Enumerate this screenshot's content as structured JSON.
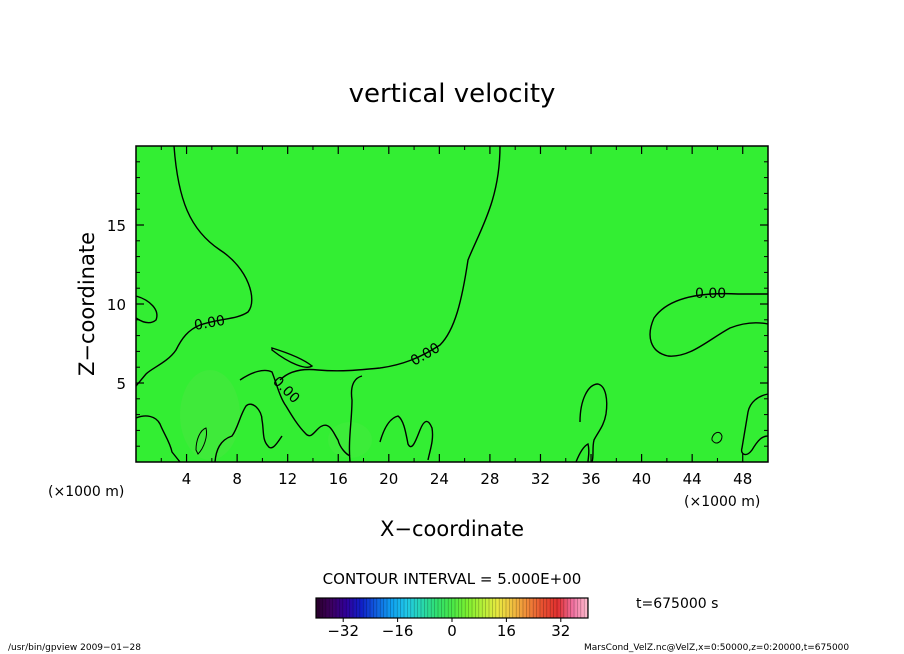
{
  "chart_data": {
    "type": "heatmap",
    "title": "vertical velocity",
    "xlabel": "X−coordinate",
    "ylabel": "Z−coordinate",
    "x_unit_left": "(×1000 m)",
    "x_unit_right": "(×1000 m)",
    "xlim": [
      0,
      50
    ],
    "ylim": [
      0,
      20
    ],
    "x_ticks": [
      4,
      8,
      12,
      16,
      20,
      24,
      28,
      32,
      36,
      40,
      44,
      48
    ],
    "y_ticks": [
      5,
      10,
      15
    ],
    "field_value": 0.0,
    "contour_labels": [
      "0.00",
      "0.00",
      "0.00",
      "0.00",
      "0.00"
    ],
    "contour_interval_text": "CONTOUR INTERVAL = 5.000E+00",
    "time_text": "t=675000 s",
    "colorbar": {
      "min": -40,
      "max": 40,
      "ticks": [
        -32,
        -16,
        0,
        16,
        32
      ],
      "tick_labels": [
        "−32",
        "−16",
        "0",
        "16",
        "32"
      ],
      "colors": [
        "#2a002a",
        "#3c0060",
        "#30009a",
        "#1020c8",
        "#1060e0",
        "#10a0f0",
        "#20c8e8",
        "#28d8b0",
        "#30e070",
        "#48e848",
        "#7cf030",
        "#b4f038",
        "#e8e840",
        "#f0c040",
        "#f08838",
        "#e85030",
        "#e03030",
        "#f070a0",
        "#ffc0d0"
      ]
    },
    "field_color": "#33ee33",
    "line_color": "#000000"
  },
  "footer": {
    "left": "/usr/bin/gpview   2009−01−28",
    "right": "MarsCond_VelZ.nc@VelZ,x=0:50000,z=0:20000,t=675000"
  }
}
